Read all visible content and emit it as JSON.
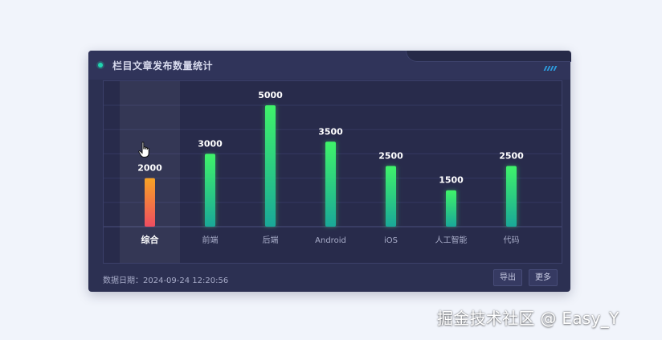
{
  "panel": {
    "title": "栏目文章发布数量统计",
    "date_label": "数据日期：",
    "date_value": "2024-09-24 12:20:56",
    "export_label": "导出",
    "more_label": "更多"
  },
  "watermark": "掘金技术社区 @ Easy_Y",
  "colors": {
    "accent_green_top": "#3ff36a",
    "accent_teal_bottom": "#1aa898",
    "highlight_orange_top": "#f7a325",
    "highlight_red_bottom": "#ee4d60",
    "panel_bg": "#2c3052"
  },
  "chart_data": {
    "type": "bar",
    "categories": [
      "综合",
      "前端",
      "后端",
      "Android",
      "iOS",
      "人工智能",
      "代码"
    ],
    "values": [
      2000,
      3000,
      5000,
      3500,
      2500,
      1500,
      2500
    ],
    "highlighted_category": "综合",
    "ylim": [
      0,
      5000
    ],
    "grid": true,
    "show_data_labels": true,
    "title": "",
    "xlabel": "",
    "ylabel": ""
  }
}
